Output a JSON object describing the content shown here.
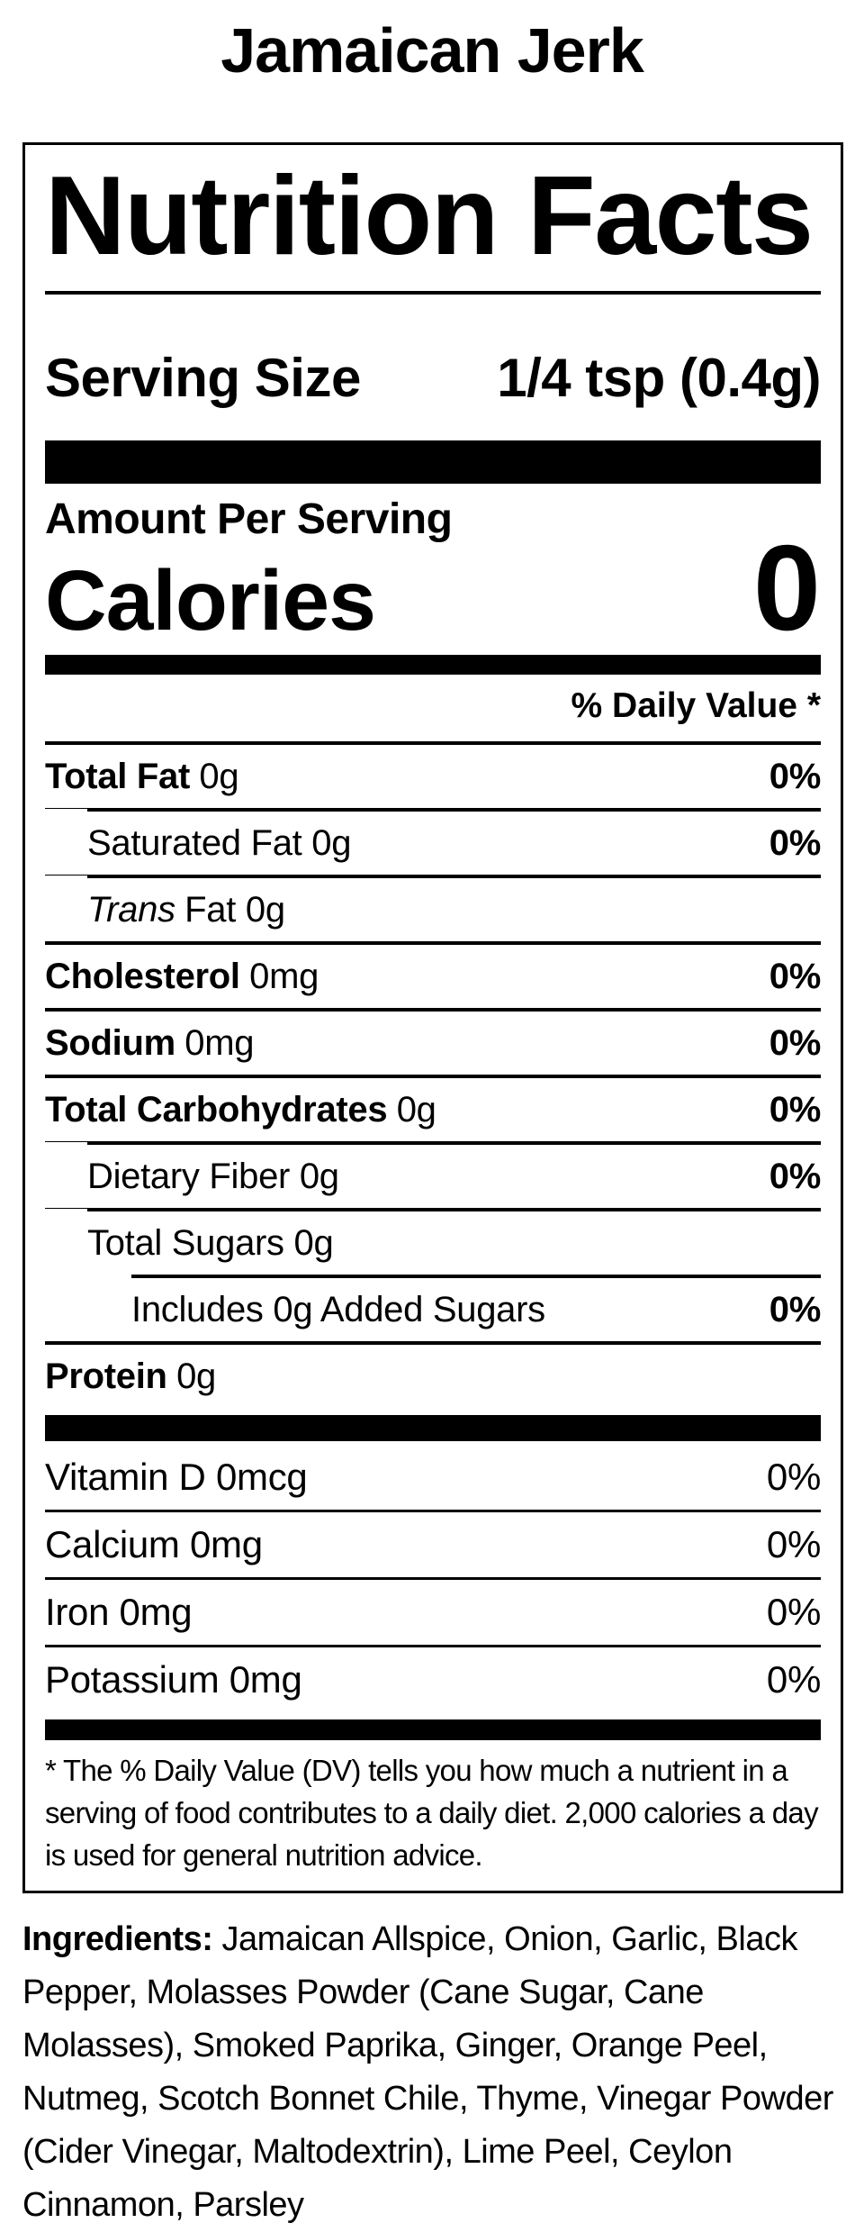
{
  "page": {
    "product_title": "Jamaican Jerk",
    "colors": {
      "text": "#000000",
      "background": "#ffffff"
    }
  },
  "label": {
    "heading": "Nutrition Facts",
    "serving_size": {
      "label": "Serving Size",
      "value": "1/4 tsp (0.4g)"
    },
    "amount_per_serving": "Amount Per Serving",
    "calories": {
      "label": "Calories",
      "value": "0"
    },
    "daily_value_header": "% Daily Value *",
    "nutrient_rows": [
      {
        "b": "Total Fat",
        "r": "0g",
        "dv": "0%"
      },
      {
        "r": "Saturated Fat 0g",
        "dv": "0%"
      },
      {
        "i": "Trans",
        "r": "Fat 0g",
        "dv": ""
      },
      {
        "b": "Cholesterol",
        "r": "0mg",
        "dv": "0%"
      },
      {
        "b": "Sodium",
        "r": "0mg",
        "dv": "0%"
      },
      {
        "b": "Total Carbohydrates",
        "r": "0g",
        "dv": "0%"
      },
      {
        "r": "Dietary Fiber 0g",
        "dv": "0%"
      },
      {
        "r": "Total Sugars 0g",
        "dv": ""
      },
      {
        "r": "Includes 0g Added Sugars",
        "dv": "0%"
      },
      {
        "b": "Protein",
        "r": "0g",
        "dv": ""
      }
    ],
    "vitamin_rows": [
      {
        "r": "Vitamin D 0mcg",
        "dv": "0%"
      },
      {
        "r": "Calcium 0mg",
        "dv": "0%"
      },
      {
        "r": "Iron 0mg",
        "dv": "0%"
      },
      {
        "r": "Potassium 0mg",
        "dv": "0%"
      }
    ],
    "footnote": "* The % Daily Value (DV) tells you how much a nutrient in a serving of food contributes to a daily diet. 2,000 calories a day is used for general nutrition advice."
  },
  "ingredients": {
    "label": "Ingredients:",
    "text": " Jamaican Allspice, Onion, Garlic, Black Pepper, Molasses Powder (Cane Sugar, Cane Molasses), Smoked Paprika, Ginger, Orange Peel, Nutmeg, Scotch Bonnet Chile, Thyme, Vinegar Powder (Cider Vinegar, Maltodextrin), Lime Peel, Ceylon Cinnamon, Parsley"
  }
}
